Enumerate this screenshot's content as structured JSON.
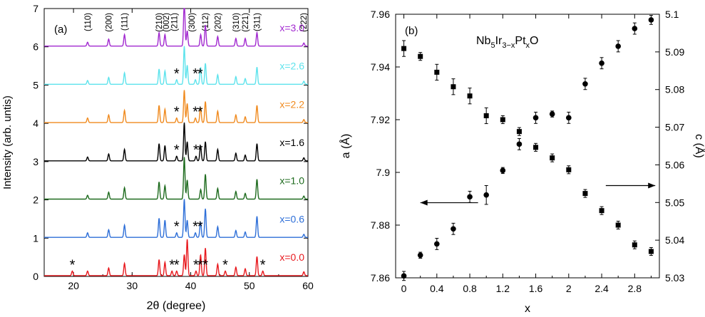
{
  "chart_data": [
    {
      "type": "line",
      "panel_label": "(a)",
      "xlabel": "2θ (degree)",
      "ylabel": "Intensity (arb. untis)",
      "xlim": [
        15,
        60
      ],
      "ylim": [
        0,
        7
      ],
      "xticks": [
        "20",
        "30",
        "40",
        "50",
        "60"
      ],
      "yticks": [
        "0",
        "1",
        "2",
        "3",
        "4",
        "5",
        "6",
        "7"
      ],
      "grid": false,
      "peak_indices": [
        {
          "label": "(110)",
          "x": 22.4
        },
        {
          "label": "(200)",
          "x": 26.0
        },
        {
          "label": "(111)",
          "x": 28.7
        },
        {
          "label": "(210)",
          "x": 34.6
        },
        {
          "label": "(002)",
          "x": 35.8
        },
        {
          "label": "(211)",
          "x": 37.2
        },
        {
          "label": "(300)",
          "x": 40.2
        },
        {
          "label": "(112)",
          "x": 42.5
        },
        {
          "label": "(202)",
          "x": 44.6
        },
        {
          "label": "(310)",
          "x": 47.7
        },
        {
          "label": "(221)",
          "x": 49.3
        },
        {
          "label": "(311)",
          "x": 51.3
        },
        {
          "label": "(222)",
          "x": 59.3
        }
      ],
      "peaks_2theta": [
        22.4,
        26.0,
        28.7,
        34.6,
        35.6,
        38.9,
        39.4,
        41.7,
        42.5,
        44.6,
        47.7,
        49.3,
        51.3,
        59.3
      ],
      "series": [
        {
          "name": "x=0.0",
          "offset": 0,
          "color": "#e8191e",
          "heights": [
            0.12,
            0.2,
            0.32,
            0.42,
            0.35,
            0.55,
            0.95,
            0.45,
            0.6,
            0.3,
            0.22,
            0.18,
            0.5,
            0.1
          ],
          "impurity_marks": [
            19.8,
            36.8,
            37.6,
            40.9,
            41.6,
            42.5,
            45.9,
            52.3
          ]
        },
        {
          "name": "x=0.6",
          "offset": 1,
          "color": "#2e6fd8",
          "heights": [
            0.12,
            0.2,
            0.32,
            0.5,
            0.45,
            1.0,
            0.45,
            0.3,
            0.75,
            0.28,
            0.18,
            0.14,
            0.55,
            0.08
          ],
          "impurity_marks": [
            37.6,
            40.8,
            41.6
          ]
        },
        {
          "name": "x=1.0",
          "offset": 2,
          "color": "#1e6b1e",
          "heights": [
            0.1,
            0.18,
            0.3,
            0.45,
            0.35,
            1.1,
            0.5,
            0.25,
            0.65,
            0.28,
            0.2,
            0.15,
            0.52,
            0.08
          ],
          "impurity_marks": []
        },
        {
          "name": "x=1.6",
          "offset": 3,
          "color": "#000000",
          "heights": [
            0.1,
            0.18,
            0.3,
            0.45,
            0.4,
            1.0,
            0.5,
            0.3,
            0.5,
            0.3,
            0.2,
            0.15,
            0.45,
            0.08
          ],
          "impurity_marks": [
            37.6,
            40.9,
            41.6
          ]
        },
        {
          "name": "x=2.2",
          "offset": 4,
          "color": "#f08a1e",
          "heights": [
            0.12,
            0.2,
            0.32,
            0.45,
            0.35,
            0.85,
            0.5,
            0.3,
            0.55,
            0.3,
            0.2,
            0.15,
            0.45,
            0.08
          ],
          "impurity_marks": [
            37.6,
            40.8,
            41.6
          ]
        },
        {
          "name": "x=2.6",
          "offset": 5,
          "color": "#5ee3ec",
          "heights": [
            0.1,
            0.18,
            0.3,
            0.4,
            0.35,
            1.0,
            0.5,
            0.35,
            0.55,
            0.25,
            0.2,
            0.15,
            0.45,
            0.08
          ],
          "impurity_marks": [
            37.6,
            40.8,
            41.6
          ]
        },
        {
          "name": "x=3.0",
          "offset": 6,
          "color": "#a22ad0",
          "heights": [
            0.1,
            0.18,
            0.3,
            0.35,
            0.3,
            1.2,
            0.4,
            0.3,
            0.55,
            0.25,
            0.2,
            0.2,
            0.35,
            0.08
          ],
          "impurity_marks": []
        }
      ]
    },
    {
      "type": "scatter",
      "panel_label": "(b)",
      "annotation": {
        "base": "Nb",
        "sub1": "5",
        "mid": "Ir",
        "sub2": "3−x",
        "mid2": "Pt",
        "sub3": "x",
        "tail": "O"
      },
      "xlabel": "x",
      "ylabel_left": "a (Å)",
      "ylabel_right": "c (Å)",
      "xlim": [
        -0.1,
        3.1
      ],
      "ylim_left": [
        7.86,
        7.96
      ],
      "ylim_right": [
        5.03,
        5.1
      ],
      "xticks": [
        "0",
        "0.4",
        "0.8",
        "1.2",
        "1.6",
        "2",
        "2.4",
        "2.8"
      ],
      "yticks_left": [
        "7.86",
        "7.88",
        "7.9",
        "7.92",
        "7.94",
        "7.96"
      ],
      "yticks_right": [
        "5.03",
        "5.04",
        "5.05",
        "5.06",
        "5.07",
        "5.08",
        "5.09",
        "5.1"
      ],
      "series": [
        {
          "name": "a",
          "axis": "left",
          "marker": "square",
          "x": [
            0,
            0.2,
            0.4,
            0.6,
            0.8,
            1.0,
            1.2,
            1.4,
            1.6,
            1.8,
            2.0,
            2.2,
            2.4,
            2.6,
            2.8,
            3.0
          ],
          "y": [
            7.947,
            7.944,
            7.938,
            7.9325,
            7.929,
            7.9215,
            7.92,
            7.9155,
            7.9095,
            7.9055,
            7.901,
            7.892,
            7.8855,
            7.88,
            7.8725,
            7.87
          ],
          "err": [
            0.003,
            0.0015,
            0.003,
            0.003,
            0.003,
            0.003,
            0.0015,
            0.0015,
            0.0015,
            0.0015,
            0.0015,
            0.0015,
            0.0015,
            0.0015,
            0.0015,
            0.0015
          ]
        },
        {
          "name": "c",
          "axis": "right",
          "marker": "circle",
          "x": [
            0,
            0.2,
            0.4,
            0.6,
            0.8,
            1.0,
            1.2,
            1.4,
            1.6,
            1.8,
            2.0,
            2.2,
            2.4,
            2.6,
            2.8,
            3.0
          ],
          "y": [
            5.0305,
            5.036,
            5.039,
            5.043,
            5.0515,
            5.052,
            5.0585,
            5.0655,
            5.0725,
            5.0735,
            5.0725,
            5.0815,
            5.087,
            5.0915,
            5.0962,
            5.0985
          ],
          "err": [
            0.0012,
            0.0008,
            0.0015,
            0.0015,
            0.0015,
            0.0025,
            0.0008,
            0.0015,
            0.0015,
            0.0008,
            0.0015,
            0.0015,
            0.0015,
            0.0015,
            0.0015,
            0.0012
          ]
        }
      ],
      "arrows": [
        {
          "direction": "left",
          "x": [
            0.9,
            0.2
          ],
          "y_left": 7.8885
        },
        {
          "direction": "right",
          "x": [
            2.45,
            3.05
          ],
          "y_left": 7.895
        }
      ]
    }
  ]
}
